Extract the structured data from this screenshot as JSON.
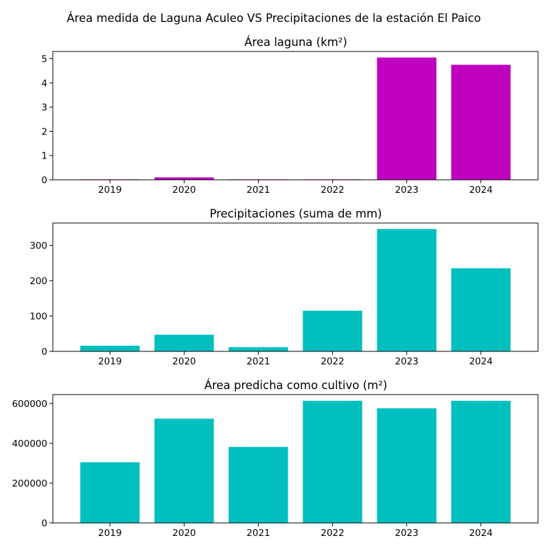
{
  "figure_title": "Área medida de Laguna Aculeo VS Precipitaciones de la estación El Paico",
  "colors": {
    "magenta": "#bf00bf",
    "cyan": "#00bfbf"
  },
  "chart_data": [
    {
      "type": "bar",
      "title": "Área laguna (km²)",
      "categories": [
        "2019",
        "2020",
        "2021",
        "2022",
        "2023",
        "2024"
      ],
      "values": [
        0.02,
        0.1,
        0.02,
        0.02,
        5.05,
        4.75
      ],
      "xlabel": "",
      "ylabel": "",
      "ylim": [
        0,
        5.3
      ],
      "yticks": [
        0,
        1,
        2,
        3,
        4,
        5
      ],
      "ytick_labels": [
        "0",
        "1",
        "2",
        "3",
        "4",
        "5"
      ],
      "color": "#bf00bf",
      "grid": false
    },
    {
      "type": "bar",
      "title": "Precipitaciones (suma de mm)",
      "categories": [
        "2019",
        "2020",
        "2021",
        "2022",
        "2023",
        "2024"
      ],
      "values": [
        16,
        47,
        12,
        115,
        346,
        235
      ],
      "xlabel": "",
      "ylabel": "",
      "ylim": [
        0,
        363
      ],
      "yticks": [
        0,
        100,
        200,
        300
      ],
      "ytick_labels": [
        "0",
        "100",
        "200",
        "300"
      ],
      "color": "#00bfbf",
      "grid": false
    },
    {
      "type": "bar",
      "title": "Área predicha como cultivo (m²)",
      "categories": [
        "2019",
        "2020",
        "2021",
        "2022",
        "2023",
        "2024"
      ],
      "values": [
        305000,
        524000,
        382000,
        614000,
        576000,
        614000
      ],
      "xlabel": "",
      "ylabel": "",
      "ylim": [
        0,
        645000
      ],
      "yticks": [
        0,
        200000,
        400000,
        600000
      ],
      "ytick_labels": [
        "0",
        "200000",
        "400000",
        "600000"
      ],
      "color": "#00bfbf",
      "grid": false
    }
  ]
}
